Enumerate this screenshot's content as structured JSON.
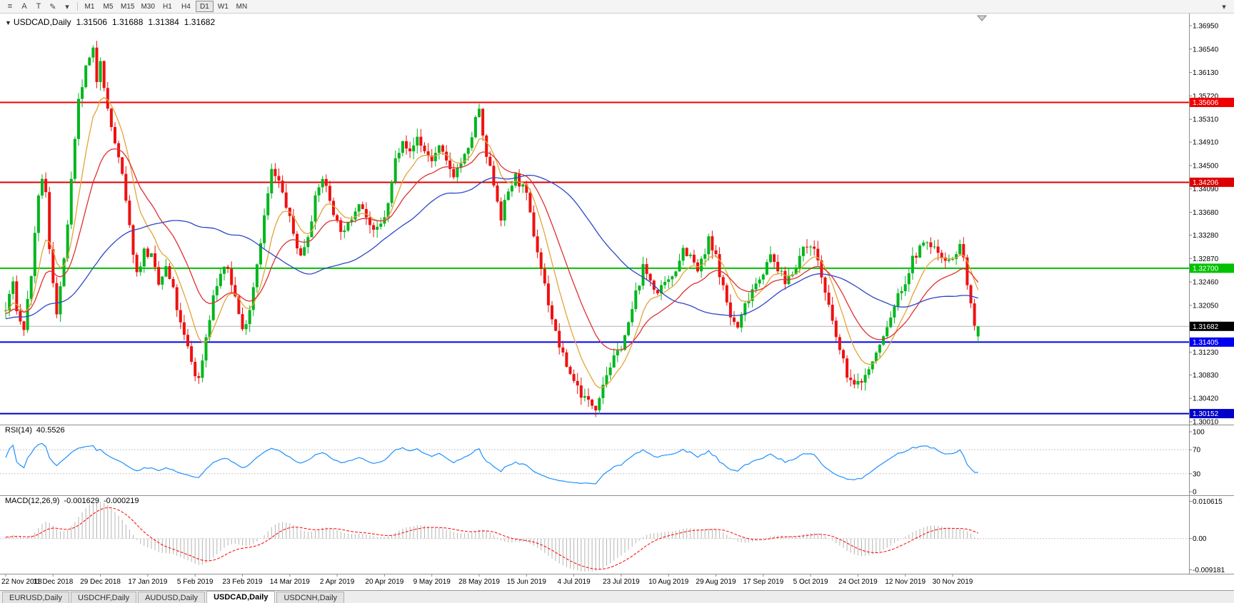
{
  "toolbar": {
    "icons": [
      {
        "name": "chart-list-icon",
        "glyph": "≡"
      },
      {
        "name": "cursor-icon",
        "glyph": "A"
      },
      {
        "name": "text-icon",
        "glyph": "T"
      },
      {
        "name": "draw-icon",
        "glyph": "✎"
      },
      {
        "name": "draw-dropdown-icon",
        "glyph": "▾"
      }
    ],
    "timeframes": [
      "M1",
      "M5",
      "M15",
      "M30",
      "H1",
      "H4",
      "D1",
      "W1",
      "MN"
    ],
    "active_timeframe": "D1",
    "overflow_icon": "▾"
  },
  "chart_header": {
    "collapse_icon": "▼",
    "symbol": "USDCAD,Daily",
    "open": "1.31506",
    "high": "1.31688",
    "low": "1.31384",
    "close": "1.31682"
  },
  "price_axis": {
    "decimals": 5,
    "ticks": [
      1.3695,
      1.3654,
      1.3613,
      1.3572,
      1.3531,
      1.3491,
      1.345,
      1.3409,
      1.3368,
      1.3328,
      1.3287,
      1.3246,
      1.3205,
      1.3123,
      1.3083,
      1.3042,
      1.3001
    ]
  },
  "hlines": [
    {
      "price": 1.35606,
      "badge": "1.35606",
      "color": "#F00000"
    },
    {
      "price": 1.34206,
      "badge": "1.34206",
      "color": "#DD0000"
    },
    {
      "price": 1.327,
      "badge": "1.32700",
      "color": "#00C000"
    },
    {
      "price": 1.31405,
      "badge": "1.31405",
      "color": "#0000F0"
    },
    {
      "price": 1.30152,
      "badge": "1.30152",
      "color": "#0000C8"
    }
  ],
  "current_price": {
    "value": 1.31682,
    "badge": "1.31682",
    "line_color": "#B4B4B4",
    "badge_color": "#000000"
  },
  "rsi": {
    "name": "RSI(14)",
    "value": "40.5526",
    "color": "#1E90FF",
    "scale_ticks": [
      100,
      70,
      30,
      0
    ],
    "dashed_levels": [
      70,
      30
    ]
  },
  "macd": {
    "name": "MACD(12,26,9)",
    "main_value": "-0.001629",
    "signal_value": "-0.000219",
    "histogram_color": "#B4B4B4",
    "signal_color": "#FF0000",
    "scale_labels": [
      "0.010615",
      "0.00",
      "-0.009181"
    ]
  },
  "date_axis": {
    "labels": [
      "22 Nov 2018",
      "11 Dec 2018",
      "29 Dec 2018",
      "17 Jan 2019",
      "5 Feb 2019",
      "23 Feb 2019",
      "14 Mar 2019",
      "2 Apr 2019",
      "20 Apr 2019",
      "9 May 2019",
      "28 May 2019",
      "15 Jun 2019",
      "4 Jul 2019",
      "23 Jul 2019",
      "10 Aug 2019",
      "29 Aug 2019",
      "17 Sep 2019",
      "5 Oct 2019",
      "24 Oct 2019",
      "12 Nov 2019",
      "30 Nov 2019"
    ]
  },
  "tabs": {
    "items": [
      "EURUSD,Daily",
      "USDCHF,Daily",
      "AUDUSD,Daily",
      "USDCAD,Daily",
      "USDCNH,Daily"
    ],
    "active_index": 3
  },
  "chart_data": {
    "type": "candlestick",
    "symbol": "USDCAD",
    "timeframe": "Daily",
    "visible_price_range": {
      "top": 1.3695,
      "bottom": 1.3001
    },
    "bar_count": 268,
    "warmup_bars": 60,
    "warmup_start": 1.316,
    "seed": 7,
    "noise": 0.0008,
    "wick": 0.0015,
    "up_color": "#00B61E",
    "down_color": "#EE1111",
    "last_candle": {
      "open": 1.31506,
      "high": 1.31688,
      "low": 1.31384,
      "close": 1.31682
    },
    "moving_averages": [
      {
        "period": 9,
        "type": "ema",
        "color": "#E2A437"
      },
      {
        "period": 21,
        "type": "ema",
        "color": "#E03030"
      },
      {
        "period": 50,
        "type": "sma",
        "color": "#2E46C8"
      }
    ],
    "indicators": {
      "rsi_period": 14,
      "macd": [
        12,
        26,
        9
      ]
    },
    "trajectory": [
      [
        0,
        1.3195
      ],
      [
        1,
        1.3225
      ],
      [
        2,
        1.324
      ],
      [
        3,
        1.32
      ],
      [
        4,
        1.3175
      ],
      [
        5,
        1.3165
      ],
      [
        7,
        1.326
      ],
      [
        9,
        1.339
      ],
      [
        10,
        1.343
      ],
      [
        11,
        1.34
      ],
      [
        12,
        1.33
      ],
      [
        14,
        1.3195
      ],
      [
        16,
        1.328
      ],
      [
        18,
        1.342
      ],
      [
        20,
        1.356
      ],
      [
        22,
        1.362
      ],
      [
        24,
        1.365
      ],
      [
        25,
        1.36
      ],
      [
        26,
        1.364
      ],
      [
        28,
        1.3545
      ],
      [
        30,
        1.349
      ],
      [
        32,
        1.343
      ],
      [
        34,
        1.334
      ],
      [
        36,
        1.326
      ],
      [
        38,
        1.33
      ],
      [
        40,
        1.329
      ],
      [
        42,
        1.324
      ],
      [
        44,
        1.327
      ],
      [
        46,
        1.323
      ],
      [
        48,
        1.317
      ],
      [
        50,
        1.313
      ],
      [
        52,
        1.3085
      ],
      [
        53,
        1.3075
      ],
      [
        55,
        1.315
      ],
      [
        57,
        1.322
      ],
      [
        59,
        1.326
      ],
      [
        61,
        1.327
      ],
      [
        63,
        1.322
      ],
      [
        65,
        1.316
      ],
      [
        67,
        1.32
      ],
      [
        69,
        1.328
      ],
      [
        71,
        1.336
      ],
      [
        73,
        1.344
      ],
      [
        75,
        1.342
      ],
      [
        77,
        1.338
      ],
      [
        79,
        1.333
      ],
      [
        81,
        1.329
      ],
      [
        83,
        1.333
      ],
      [
        85,
        1.339
      ],
      [
        87,
        1.343
      ],
      [
        89,
        1.339
      ],
      [
        91,
        1.335
      ],
      [
        93,
        1.333
      ],
      [
        95,
        1.336
      ],
      [
        97,
        1.339
      ],
      [
        99,
        1.336
      ],
      [
        101,
        1.333
      ],
      [
        103,
        1.3345
      ],
      [
        105,
        1.338
      ],
      [
        107,
        1.346
      ],
      [
        109,
        1.35
      ],
      [
        111,
        1.347
      ],
      [
        113,
        1.35
      ],
      [
        115,
        1.3475
      ],
      [
        117,
        1.346
      ],
      [
        119,
        1.348
      ],
      [
        121,
        1.3455
      ],
      [
        123,
        1.3435
      ],
      [
        125,
        1.3455
      ],
      [
        127,
        1.3475
      ],
      [
        129,
        1.353
      ],
      [
        130,
        1.355
      ],
      [
        131,
        1.3495
      ],
      [
        132,
        1.3465
      ],
      [
        134,
        1.342
      ],
      [
        136,
        1.336
      ],
      [
        138,
        1.3405
      ],
      [
        140,
        1.343
      ],
      [
        142,
        1.341
      ],
      [
        143,
        1.3395
      ],
      [
        145,
        1.333
      ],
      [
        147,
        1.327
      ],
      [
        149,
        1.321
      ],
      [
        151,
        1.3155
      ],
      [
        153,
        1.3115
      ],
      [
        155,
        1.3085
      ],
      [
        156,
        1.3075
      ],
      [
        158,
        1.305
      ],
      [
        160,
        1.3035
      ],
      [
        162,
        1.3028
      ],
      [
        164,
        1.307
      ],
      [
        166,
        1.31
      ],
      [
        168,
        1.312
      ],
      [
        169,
        1.3135
      ],
      [
        171,
        1.317
      ],
      [
        173,
        1.3225
      ],
      [
        175,
        1.327
      ],
      [
        177,
        1.325
      ],
      [
        179,
        1.3225
      ],
      [
        181,
        1.324
      ],
      [
        182,
        1.3245
      ],
      [
        184,
        1.327
      ],
      [
        186,
        1.3305
      ],
      [
        188,
        1.329
      ],
      [
        190,
        1.3265
      ],
      [
        192,
        1.3295
      ],
      [
        193,
        1.332
      ],
      [
        194,
        1.33
      ],
      [
        195,
        1.329
      ],
      [
        197,
        1.3235
      ],
      [
        199,
        1.3185
      ],
      [
        201,
        1.3165
      ],
      [
        203,
        1.3205
      ],
      [
        205,
        1.3235
      ],
      [
        207,
        1.3255
      ],
      [
        208,
        1.3265
      ],
      [
        210,
        1.329
      ],
      [
        212,
        1.327
      ],
      [
        214,
        1.3245
      ],
      [
        216,
        1.3265
      ],
      [
        218,
        1.329
      ],
      [
        220,
        1.331
      ],
      [
        221,
        1.3315
      ],
      [
        223,
        1.3285
      ],
      [
        225,
        1.3225
      ],
      [
        227,
        1.3175
      ],
      [
        229,
        1.3125
      ],
      [
        231,
        1.3085
      ],
      [
        233,
        1.3062
      ],
      [
        234,
        1.3068
      ],
      [
        236,
        1.3082
      ],
      [
        238,
        1.3105
      ],
      [
        240,
        1.3135
      ],
      [
        242,
        1.3165
      ],
      [
        244,
        1.3205
      ],
      [
        246,
        1.3235
      ],
      [
        247,
        1.3245
      ],
      [
        249,
        1.3285
      ],
      [
        251,
        1.3305
      ],
      [
        253,
        1.3315
      ],
      [
        255,
        1.3305
      ],
      [
        257,
        1.3292
      ],
      [
        259,
        1.3288
      ],
      [
        260,
        1.3282
      ],
      [
        261,
        1.33
      ],
      [
        262,
        1.3312
      ],
      [
        263,
        1.3285
      ],
      [
        264,
        1.3245
      ],
      [
        265,
        1.3205
      ],
      [
        266,
        1.3162
      ],
      [
        267,
        1.3168
      ]
    ]
  }
}
